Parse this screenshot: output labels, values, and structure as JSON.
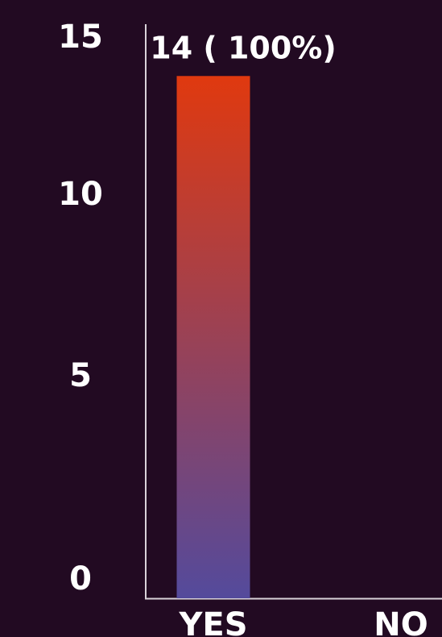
{
  "chart_data": {
    "type": "bar",
    "categories": [
      "YES",
      "NO"
    ],
    "values": [
      14,
      0
    ],
    "data_labels": [
      "14 ( 100%)",
      ""
    ],
    "yticks": [
      "0",
      "5",
      "10",
      "15"
    ],
    "ylim": [
      0,
      15
    ],
    "grid": false,
    "bar_gradient": {
      "top": "#e0390f",
      "bottom": "#544a9c"
    },
    "axis_color": "#d9d2d9",
    "background": "#220a22"
  }
}
